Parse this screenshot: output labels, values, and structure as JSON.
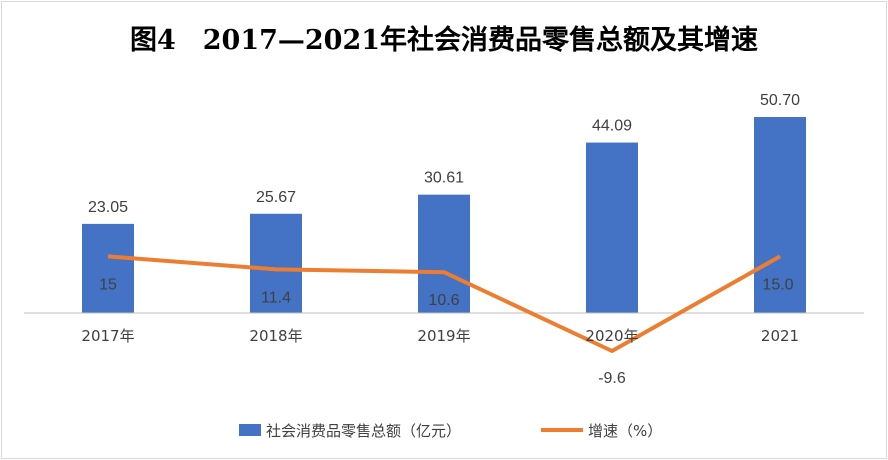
{
  "chart_data": {
    "type": "bar+line",
    "title": "图4　2017—2021年社会消费品零售总额及其增速",
    "categories": [
      "2017年",
      "2018年",
      "2019年",
      "2020年",
      "2021"
    ],
    "series": [
      {
        "name": "社会消费品零售总额（亿元）",
        "type": "bar",
        "values": [
          23.05,
          25.67,
          30.61,
          44.09,
          50.7
        ],
        "labels": [
          "23.05",
          "25.67",
          "30.61",
          "44.09",
          "50.70"
        ],
        "color": "#4472c4"
      },
      {
        "name": "增速（%）",
        "type": "line",
        "values": [
          15,
          11.4,
          10.6,
          -9.6,
          15.0
        ],
        "labels": [
          "15",
          "11.4",
          "10.6",
          "-9.6",
          "15.0"
        ],
        "color": "#ed7d31"
      }
    ],
    "grid": false,
    "legend": "bottom"
  }
}
